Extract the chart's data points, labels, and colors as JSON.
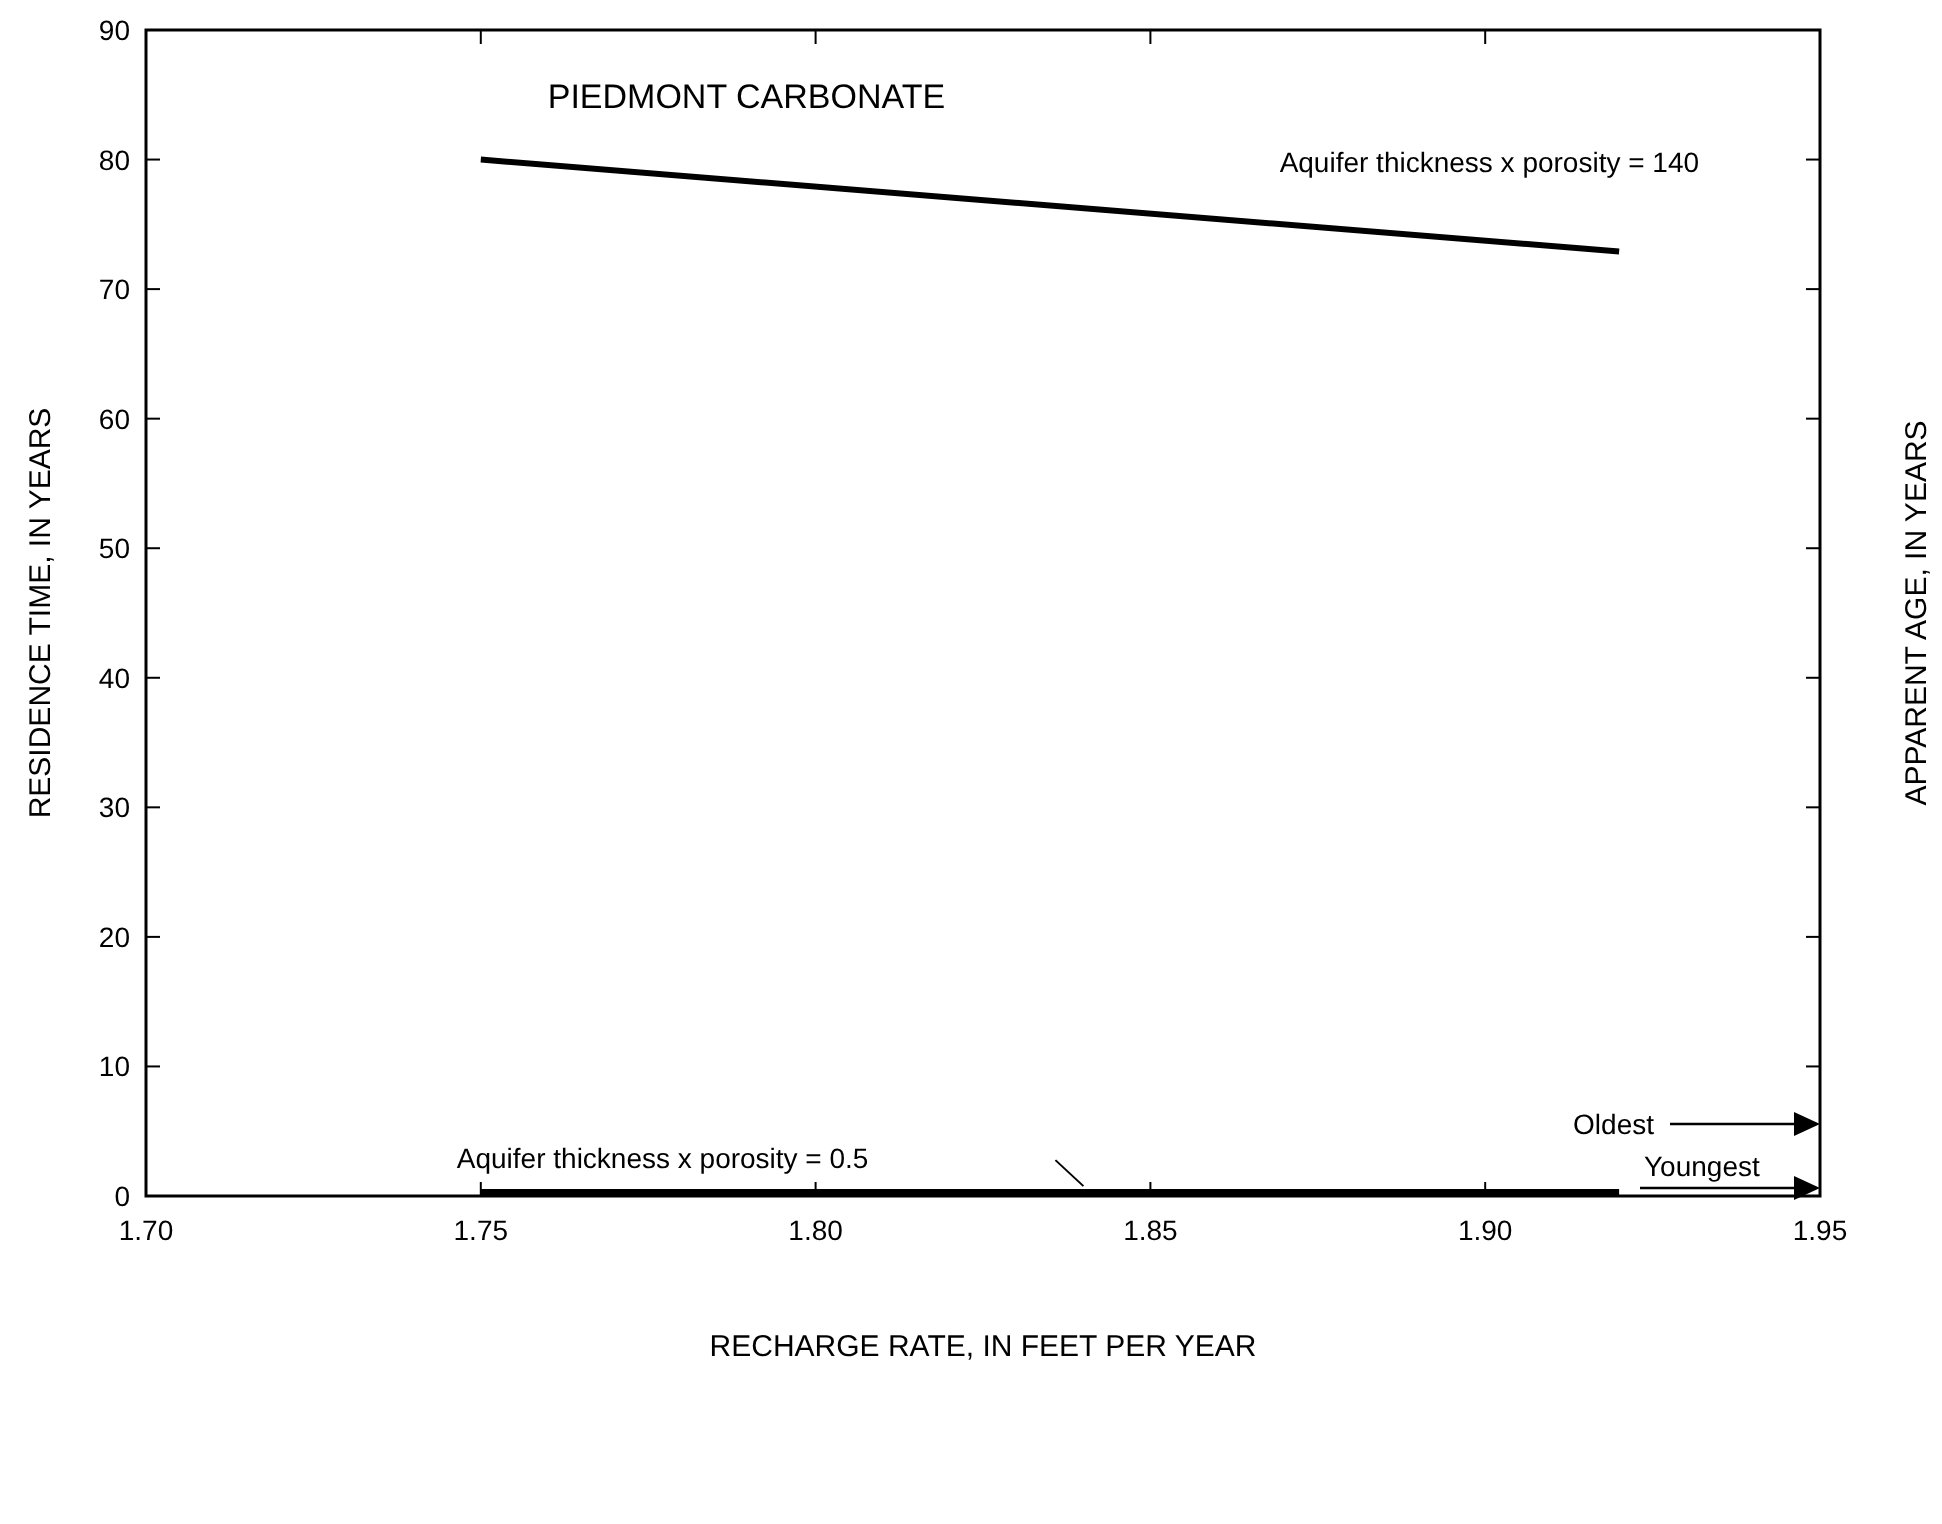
{
  "chart_data": {
    "type": "line",
    "title": "PIEDMONT CARBONATE",
    "xlabel": "RECHARGE RATE, IN FEET PER YEAR",
    "ylabel": "RESIDENCE TIME, IN YEARS",
    "y2label": "APPARENT AGE, IN YEARS",
    "x": [
      1.75,
      1.92
    ],
    "series": [
      {
        "name": "Aquifer thickness x porosity = 140",
        "color": "#000000",
        "values": [
          80,
          72.9
        ]
      },
      {
        "name": "Aquifer thickness x porosity = 0.5",
        "color": "#000000",
        "values": [
          0.3,
          0.3
        ]
      }
    ],
    "xlim": [
      1.7,
      1.95
    ],
    "xticks": [
      {
        "value": 1.7,
        "label": "1.70"
      },
      {
        "value": 1.75,
        "label": "1.75"
      },
      {
        "value": 1.8,
        "label": "1.80"
      },
      {
        "value": 1.85,
        "label": "1.85"
      },
      {
        "value": 1.9,
        "label": "1.90"
      },
      {
        "value": 1.95,
        "label": "1.95"
      }
    ],
    "ylim": [
      0,
      90
    ],
    "yticks": [
      0,
      10,
      20,
      30,
      40,
      50,
      60,
      70,
      80,
      90
    ],
    "annotations": [
      "Oldest",
      "Youngest"
    ],
    "grid": false,
    "marker": "none",
    "line_style": "solid"
  }
}
